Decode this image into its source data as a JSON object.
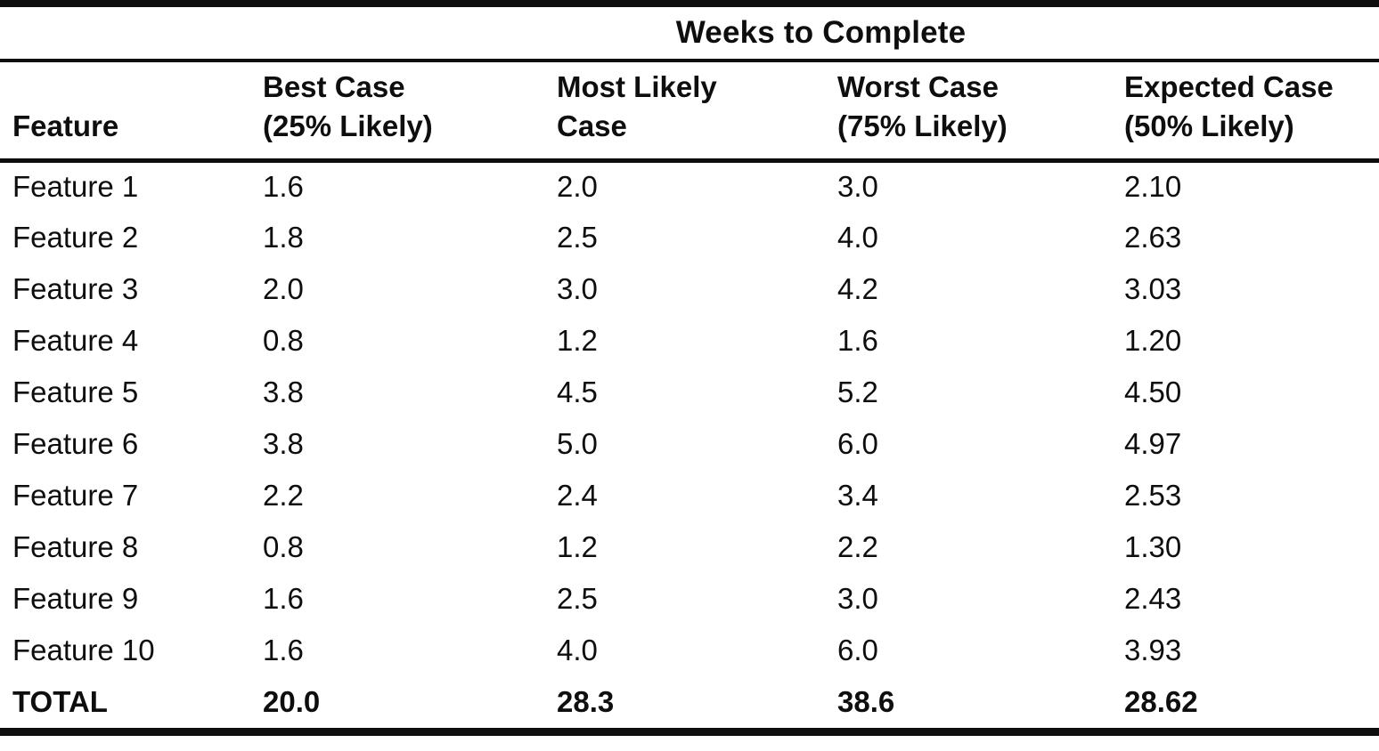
{
  "colors": {
    "ink": "#0e0e0e",
    "paper": "#ffffff"
  },
  "table": {
    "spanning_header": "Weeks to Complete",
    "columns": [
      {
        "line1": "Feature",
        "line2": ""
      },
      {
        "line1": "Best Case",
        "line2": "(25% Likely)"
      },
      {
        "line1": "Most Likely",
        "line2": "Case"
      },
      {
        "line1": "Worst Case",
        "line2": "(75% Likely)"
      },
      {
        "line1": "Expected Case",
        "line2": "(50% Likely)"
      }
    ],
    "rows": [
      {
        "feature": "Feature 1",
        "best": "1.6",
        "most_likely": "2.0",
        "worst": "3.0",
        "expected": "2.10"
      },
      {
        "feature": "Feature 2",
        "best": "1.8",
        "most_likely": "2.5",
        "worst": "4.0",
        "expected": "2.63"
      },
      {
        "feature": "Feature 3",
        "best": "2.0",
        "most_likely": "3.0",
        "worst": "4.2",
        "expected": "3.03"
      },
      {
        "feature": "Feature 4",
        "best": "0.8",
        "most_likely": "1.2",
        "worst": "1.6",
        "expected": "1.20"
      },
      {
        "feature": "Feature 5",
        "best": "3.8",
        "most_likely": "4.5",
        "worst": "5.2",
        "expected": "4.50"
      },
      {
        "feature": "Feature 6",
        "best": "3.8",
        "most_likely": "5.0",
        "worst": "6.0",
        "expected": "4.97"
      },
      {
        "feature": "Feature 7",
        "best": "2.2",
        "most_likely": "2.4",
        "worst": "3.4",
        "expected": "2.53"
      },
      {
        "feature": "Feature 8",
        "best": "0.8",
        "most_likely": "1.2",
        "worst": "2.2",
        "expected": "1.30"
      },
      {
        "feature": "Feature 9",
        "best": "1.6",
        "most_likely": "2.5",
        "worst": "3.0",
        "expected": "2.43"
      },
      {
        "feature": "Feature 10",
        "best": "1.6",
        "most_likely": "4.0",
        "worst": "6.0",
        "expected": "3.93"
      }
    ],
    "total_row": {
      "feature": "TOTAL",
      "best": "20.0",
      "most_likely": "28.3",
      "worst": "38.6",
      "expected": "28.62"
    }
  }
}
